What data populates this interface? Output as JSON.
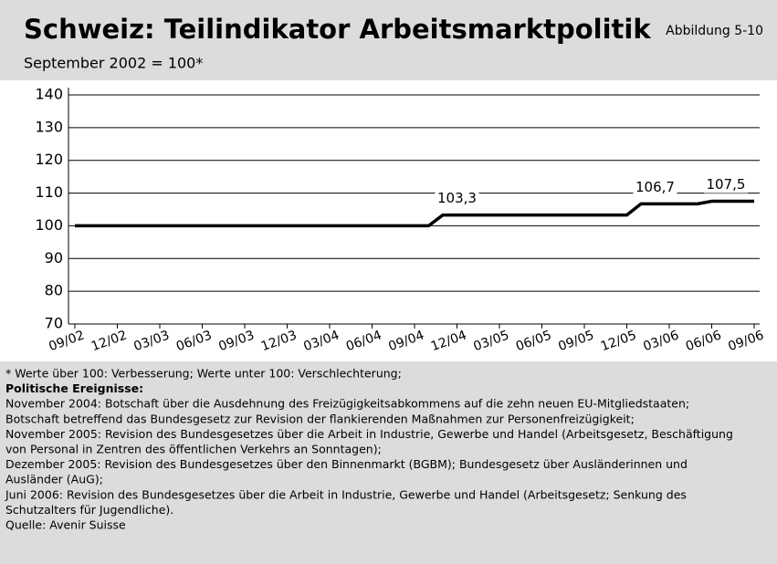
{
  "chart_data": {
    "type": "line",
    "title": "Schweiz: Teilindikator Arbeitsmarktpolitik",
    "figure_label": "Abbildung 5-10",
    "subtitle": "September 2002 = 100*",
    "categories": [
      "09/02",
      null,
      null,
      "12/02",
      null,
      null,
      "03/03",
      null,
      null,
      "06/03",
      null,
      null,
      "09/03",
      null,
      null,
      "12/03",
      null,
      null,
      "03/04",
      null,
      null,
      "06/04",
      null,
      null,
      "09/04",
      null,
      null,
      "12/04",
      null,
      null,
      "03/05",
      null,
      null,
      "06/05",
      null,
      null,
      "09/05",
      null,
      null,
      "12/05",
      null,
      null,
      "03/06",
      null,
      null,
      "06/06",
      null,
      null,
      "09/06"
    ],
    "series": [
      {
        "name": null,
        "color": "#000000",
        "values": [
          100,
          100,
          100,
          100,
          100,
          100,
          100,
          100,
          100,
          100,
          100,
          100,
          100,
          100,
          100,
          100,
          100,
          100,
          100,
          100,
          100,
          100,
          100,
          100,
          100,
          100,
          103.3,
          103.3,
          103.3,
          103.3,
          103.3,
          103.3,
          103.3,
          103.3,
          103.3,
          103.3,
          103.3,
          103.3,
          103.3,
          103.3,
          106.7,
          106.7,
          106.7,
          106.7,
          106.7,
          107.5,
          107.5,
          107.5,
          107.5
        ],
        "value_labels": [
          null,
          null,
          null,
          null,
          null,
          null,
          null,
          null,
          null,
          null,
          null,
          null,
          null,
          null,
          null,
          null,
          null,
          null,
          null,
          null,
          null,
          null,
          null,
          null,
          null,
          null,
          null,
          "103,3",
          null,
          null,
          null,
          null,
          null,
          null,
          null,
          null,
          null,
          null,
          null,
          null,
          null,
          "106,7",
          null,
          null,
          null,
          null,
          "107,5",
          null,
          null
        ]
      }
    ],
    "ylim": [
      70,
      140
    ],
    "yticks": [
      70,
      80,
      90,
      100,
      110,
      120,
      130,
      140
    ],
    "grid": true
  },
  "notes": {
    "footnote": "* Werte über 100: Verbesserung; Werte unter 100: Verschlechterung;",
    "heading": "Politische Ereignisse:",
    "lines": [
      "November 2004: Botschaft über die Ausdehnung des Freizügigkeitsabkommens auf die zehn neuen EU-Mitgliedstaaten;",
      "Botschaft betreffend das Bundesgesetz zur Revision der flankierenden Maßnahmen zur Personenfreizügigkeit;",
      "November 2005: Revision des Bundesgesetzes über die Arbeit in Industrie, Gewerbe und Handel (Arbeitsgesetz, Beschäftigung",
      "von Personal in Zentren des öffentlichen Verkehrs an Sonntagen);",
      "Dezember 2005: Revision des Bundesgesetzes über den Binnenmarkt (BGBM); Bundesgesetz über Ausländerinnen und",
      "Ausländer (AuG);",
      "Juni 2006: Revision des Bundesgesetzes über die Arbeit in Industrie, Gewerbe und Handel (Arbeitsgesetz; Senkung des",
      "Schutzalters für Jugendliche)."
    ],
    "source": "Quelle: Avenir Suisse"
  }
}
